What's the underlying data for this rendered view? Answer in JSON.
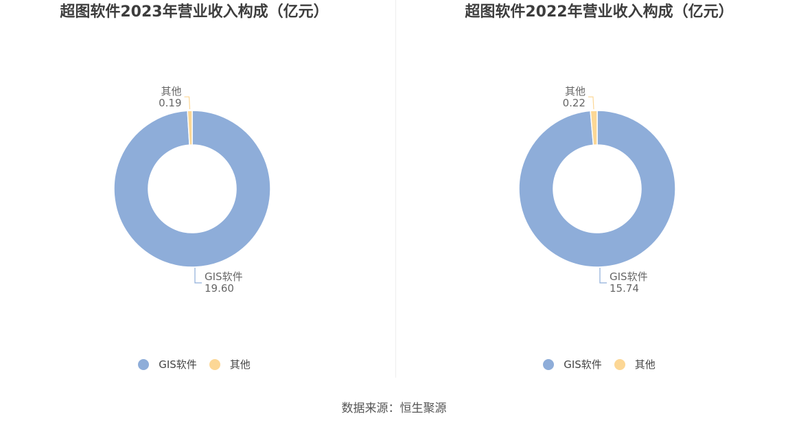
{
  "colors": {
    "gis": "#8eadd9",
    "other": "#fcd795"
  },
  "chart_data": [
    {
      "type": "pie",
      "title": "超图软件2023年营业收入构成（亿元）",
      "categories": [
        "GIS软件",
        "其他"
      ],
      "values": [
        19.6,
        0.19
      ],
      "value_labels": [
        "19.60",
        "0.19"
      ],
      "legend": [
        "GIS软件",
        "其他"
      ],
      "legend_position": "bottom"
    },
    {
      "type": "pie",
      "title": "超图软件2022年营业收入构成（亿元）",
      "categories": [
        "GIS软件",
        "其他"
      ],
      "values": [
        15.74,
        0.22
      ],
      "value_labels": [
        "15.74",
        "0.22"
      ],
      "legend": [
        "GIS软件",
        "其他"
      ],
      "legend_position": "bottom"
    }
  ],
  "source": "数据来源：恒生聚源"
}
